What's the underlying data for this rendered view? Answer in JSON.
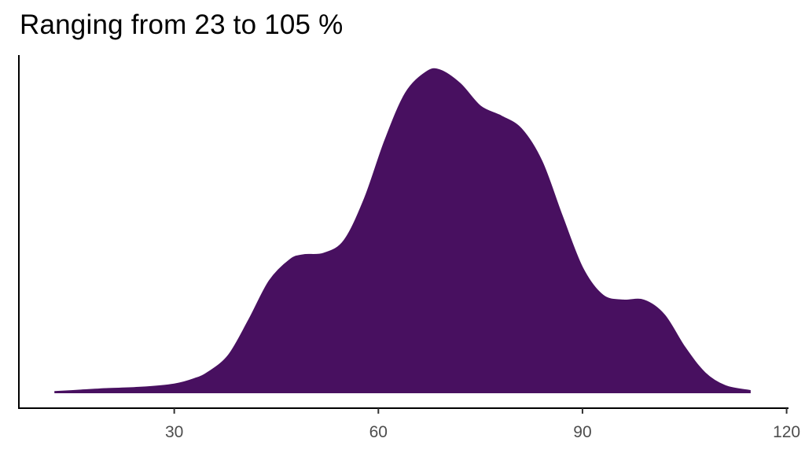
{
  "chart_data": {
    "type": "area",
    "subtype": "density",
    "title": "Ranging from 23 to 105 %",
    "xlabel": "",
    "ylabel": "",
    "xlim": [
      8,
      120
    ],
    "x_ticks": [
      30,
      60,
      90,
      120
    ],
    "y_ticks": [],
    "grid": false,
    "legend": null,
    "fill_color": "#481060",
    "x": [
      12.5,
      16,
      20,
      25,
      30,
      33,
      35,
      38,
      41,
      44,
      47,
      49,
      52,
      55,
      58,
      61,
      64,
      67,
      69,
      72,
      75,
      78,
      81,
      84,
      87,
      90,
      93,
      96,
      99,
      102,
      105,
      108,
      111,
      114.6
    ],
    "density_relative": [
      0.002,
      0.006,
      0.011,
      0.015,
      0.025,
      0.042,
      0.062,
      0.115,
      0.225,
      0.345,
      0.41,
      0.425,
      0.43,
      0.47,
      0.6,
      0.78,
      0.925,
      0.99,
      0.997,
      0.955,
      0.885,
      0.855,
      0.815,
      0.715,
      0.545,
      0.385,
      0.3,
      0.285,
      0.285,
      0.24,
      0.14,
      0.06,
      0.02,
      0.005
    ]
  },
  "layout": {
    "axis_color": "#000000",
    "tick_label_color": "#4d4d4d"
  }
}
